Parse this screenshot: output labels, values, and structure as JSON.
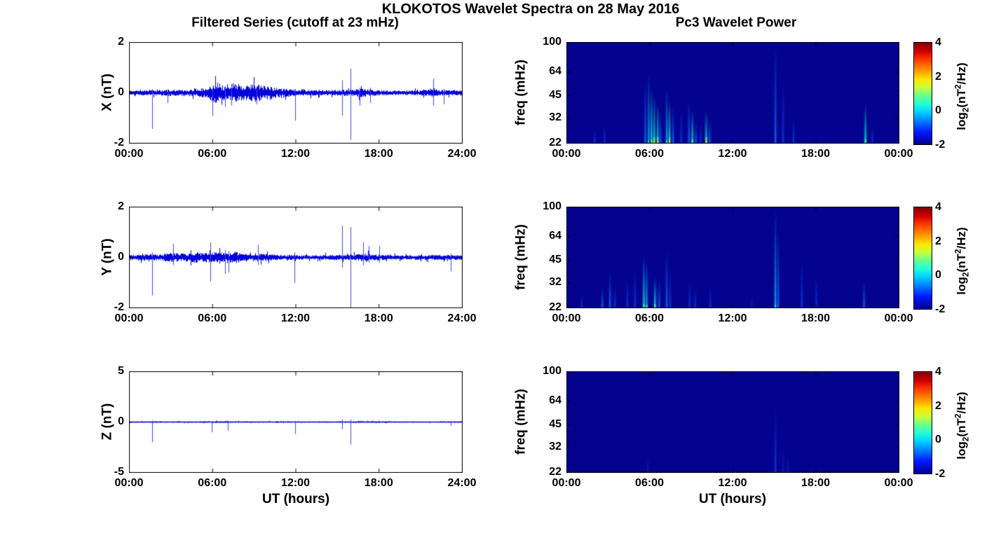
{
  "title": "KLOKOTOS Wavelet Spectra on 28 May 2016",
  "left_title": "Filtered Series (cutoff at 23 mHz)",
  "right_title": "Pc3 Wavelet Power",
  "xlabel": "UT (hours)",
  "colorbar": {
    "label_parts": [
      "log",
      "2",
      "(nT",
      "2",
      "/Hz)"
    ],
    "ticks": [
      {
        "f": 0,
        "label": "4"
      },
      {
        "f": 0.3333,
        "label": "2"
      },
      {
        "f": 0.6667,
        "label": "0"
      },
      {
        "f": 1,
        "label": "-2"
      }
    ],
    "clim": [
      -2,
      4
    ],
    "gradient": [
      [
        "#7f0000",
        0
      ],
      [
        "#d40000",
        9
      ],
      [
        "#ff3b00",
        17
      ],
      [
        "#ff9400",
        27
      ],
      [
        "#ffe500",
        36
      ],
      [
        "#c8ff37",
        44
      ],
      [
        "#6aff8d",
        52
      ],
      [
        "#22ffd4",
        60
      ],
      [
        "#00d4ff",
        68
      ],
      [
        "#0080ff",
        77
      ],
      [
        "#0018ff",
        88
      ],
      [
        "#00008f",
        100
      ]
    ]
  },
  "colors": {
    "line": "#0000dd",
    "spike": "#4646f0",
    "spec_bg": "#03038f",
    "axis": "#000000",
    "accent_yellow": "#ffd800",
    "accent_green": "#55f07a",
    "accent_cyan": "#28d8e8"
  },
  "chart_data": [
    {
      "type": "line",
      "component": "X",
      "ylabel": "X (nT)",
      "ylim": [
        -2,
        2
      ],
      "xlim_hours": [
        0,
        24
      ],
      "yticks": [
        {
          "f": 0,
          "label": "2"
        },
        {
          "f": 0.5,
          "label": "0"
        },
        {
          "f": 1,
          "label": "-2"
        }
      ],
      "xticks": [
        {
          "f": 0,
          "label": "00:00"
        },
        {
          "f": 0.25,
          "label": "06:00"
        },
        {
          "f": 0.5,
          "label": "12:00"
        },
        {
          "f": 0.75,
          "label": "18:00"
        },
        {
          "f": 1,
          "label": "24:00"
        }
      ],
      "seed": 11,
      "noise_envelope": [
        [
          0,
          0.07
        ],
        [
          1,
          0.08
        ],
        [
          2,
          0.09
        ],
        [
          3,
          0.1
        ],
        [
          4,
          0.1
        ],
        [
          5,
          0.12
        ],
        [
          5.6,
          0.18
        ],
        [
          6,
          0.28
        ],
        [
          6.4,
          0.33
        ],
        [
          6.7,
          0.26
        ],
        [
          7.1,
          0.2
        ],
        [
          7.5,
          0.33
        ],
        [
          7.9,
          0.3
        ],
        [
          8.3,
          0.22
        ],
        [
          8.8,
          0.26
        ],
        [
          9.2,
          0.28
        ],
        [
          9.6,
          0.2
        ],
        [
          10,
          0.24
        ],
        [
          10.5,
          0.16
        ],
        [
          11,
          0.13
        ],
        [
          11.5,
          0.12
        ],
        [
          12,
          0.1
        ],
        [
          13,
          0.09
        ],
        [
          14,
          0.08
        ],
        [
          15,
          0.09
        ],
        [
          15.5,
          0.1
        ],
        [
          16,
          0.1
        ],
        [
          16.7,
          0.13
        ],
        [
          17.2,
          0.11
        ],
        [
          18,
          0.08
        ],
        [
          19,
          0.07
        ],
        [
          20,
          0.07
        ],
        [
          21,
          0.08
        ],
        [
          21.7,
          0.13
        ],
        [
          22,
          0.16
        ],
        [
          22.3,
          0.1
        ],
        [
          23,
          0.08
        ],
        [
          24,
          0.08
        ]
      ],
      "spikes": [
        [
          1.67,
          1.42,
          0.15
        ],
        [
          2.8,
          0.4,
          0.1
        ],
        [
          6.0,
          0.92,
          0.2
        ],
        [
          6.9,
          0.55,
          0.25
        ],
        [
          7.4,
          0.5,
          0.3
        ],
        [
          9.2,
          0.45,
          0.25
        ],
        [
          11.95,
          1.1,
          0.15
        ],
        [
          15.35,
          0.9,
          0.5
        ],
        [
          15.98,
          1.85,
          0.95
        ],
        [
          16.6,
          0.5,
          0.2
        ],
        [
          17.4,
          0.4,
          0.2
        ],
        [
          21.95,
          0.5,
          0.55
        ],
        [
          22.7,
          0.45,
          0.15
        ]
      ]
    },
    {
      "type": "line",
      "component": "Y",
      "ylabel": "Y (nT)",
      "ylim": [
        -2,
        2
      ],
      "xlim_hours": [
        0,
        24
      ],
      "yticks": [
        {
          "f": 0,
          "label": "2"
        },
        {
          "f": 0.5,
          "label": "0"
        },
        {
          "f": 1,
          "label": "-2"
        }
      ],
      "xticks": [
        {
          "f": 0,
          "label": "00:00"
        },
        {
          "f": 0.25,
          "label": "06:00"
        },
        {
          "f": 0.5,
          "label": "12:00"
        },
        {
          "f": 0.75,
          "label": "18:00"
        },
        {
          "f": 1,
          "label": "24:00"
        }
      ],
      "seed": 22,
      "noise_envelope": [
        [
          0,
          0.09
        ],
        [
          0.7,
          0.11
        ],
        [
          1.5,
          0.1
        ],
        [
          2.2,
          0.11
        ],
        [
          2.8,
          0.13
        ],
        [
          3.2,
          0.16
        ],
        [
          3.6,
          0.12
        ],
        [
          4.2,
          0.13
        ],
        [
          4.8,
          0.16
        ],
        [
          5.3,
          0.14
        ],
        [
          5.7,
          0.17
        ],
        [
          6.1,
          0.14
        ],
        [
          6.5,
          0.17
        ],
        [
          6.9,
          0.14
        ],
        [
          7.3,
          0.16
        ],
        [
          7.7,
          0.18
        ],
        [
          8.1,
          0.12
        ],
        [
          8.7,
          0.1
        ],
        [
          9.3,
          0.13
        ],
        [
          9.8,
          0.11
        ],
        [
          10.5,
          0.09
        ],
        [
          11.5,
          0.08
        ],
        [
          12.5,
          0.07
        ],
        [
          13.5,
          0.07
        ],
        [
          14.5,
          0.08
        ],
        [
          15.5,
          0.08
        ],
        [
          16.5,
          0.1
        ],
        [
          17,
          0.12
        ],
        [
          17.5,
          0.1
        ],
        [
          18,
          0.09
        ],
        [
          19,
          0.07
        ],
        [
          20,
          0.06
        ],
        [
          21,
          0.07
        ],
        [
          22,
          0.08
        ],
        [
          23,
          0.07
        ],
        [
          24,
          0.08
        ]
      ],
      "spikes": [
        [
          1.67,
          1.5,
          0.2
        ],
        [
          3.2,
          0.3,
          0.55
        ],
        [
          5.85,
          0.95,
          0.6
        ],
        [
          6.9,
          0.65,
          0.3
        ],
        [
          7.15,
          0.6,
          0.25
        ],
        [
          9.3,
          0.3,
          0.5
        ],
        [
          11.9,
          1.0,
          0.2
        ],
        [
          15.35,
          0.4,
          1.25
        ],
        [
          15.98,
          2.0,
          1.2
        ],
        [
          16.9,
          0.3,
          0.6
        ],
        [
          17.3,
          0.2,
          0.45
        ],
        [
          18.05,
          0.2,
          0.45
        ],
        [
          23.2,
          0.55,
          0.15
        ]
      ]
    },
    {
      "type": "line",
      "component": "Z",
      "ylabel": "Z (nT)",
      "ylim": [
        -5,
        5
      ],
      "xlim_hours": [
        0,
        24
      ],
      "yticks": [
        {
          "f": 0,
          "label": "5"
        },
        {
          "f": 0.5,
          "label": "0"
        },
        {
          "f": 1,
          "label": "-5"
        }
      ],
      "xticks": [
        {
          "f": 0,
          "label": "00:00"
        },
        {
          "f": 0.25,
          "label": "06:00"
        },
        {
          "f": 0.5,
          "label": "12:00"
        },
        {
          "f": 0.75,
          "label": "18:00"
        },
        {
          "f": 1,
          "label": "24:00"
        }
      ],
      "seed": 33,
      "noise_envelope": [
        [
          0,
          0.045
        ],
        [
          5,
          0.045
        ],
        [
          6,
          0.06
        ],
        [
          7,
          0.06
        ],
        [
          8,
          0.05
        ],
        [
          12,
          0.04
        ],
        [
          15,
          0.045
        ],
        [
          16,
          0.06
        ],
        [
          17.5,
          0.055
        ],
        [
          20,
          0.04
        ],
        [
          24,
          0.045
        ]
      ],
      "spikes": [
        [
          1.67,
          2.0,
          0.15
        ],
        [
          5.95,
          1.0,
          0.1
        ],
        [
          7.1,
          0.85,
          0.12
        ],
        [
          11.95,
          1.2,
          0.1
        ],
        [
          15.35,
          0.7,
          0.3
        ],
        [
          15.98,
          2.2,
          0.25
        ],
        [
          23.2,
          0.4,
          0.1
        ]
      ]
    },
    {
      "type": "heatmap",
      "component": "X",
      "ylabel": "freq (mHz)",
      "freq_lim_mhz": [
        22,
        100
      ],
      "log_freq_axis": true,
      "xlim_hours": [
        0,
        24
      ],
      "clim": [
        -2,
        4
      ],
      "yticks": [
        {
          "f": 0,
          "label": "100"
        },
        {
          "f": 0.295,
          "label": "64"
        },
        {
          "f": 0.527,
          "label": "45"
        },
        {
          "f": 0.752,
          "label": "32"
        },
        {
          "f": 1,
          "label": "22"
        }
      ],
      "xticks": [
        {
          "f": 0,
          "label": "00:00"
        },
        {
          "f": 0.25,
          "label": "06:00"
        },
        {
          "f": 0.5,
          "label": "12:00"
        },
        {
          "f": 0.75,
          "label": "18:00"
        },
        {
          "f": 1,
          "label": "00:00"
        }
      ],
      "events": [
        [
          2.05,
          27,
          0.25
        ],
        [
          2.75,
          29,
          0.3
        ],
        [
          5.7,
          55,
          0.45
        ],
        [
          5.95,
          62,
          0.75
        ],
        [
          6.15,
          50,
          0.85
        ],
        [
          6.35,
          45,
          0.95
        ],
        [
          6.6,
          40,
          0.9
        ],
        [
          6.8,
          34,
          0.55
        ],
        [
          7.25,
          50,
          0.7
        ],
        [
          7.45,
          42,
          0.9
        ],
        [
          7.7,
          38,
          0.45
        ],
        [
          8.3,
          36,
          0.4
        ],
        [
          8.85,
          42,
          0.5
        ],
        [
          9.1,
          36,
          0.85
        ],
        [
          9.35,
          30,
          0.45
        ],
        [
          9.7,
          30,
          0.35
        ],
        [
          10.1,
          36,
          0.9
        ],
        [
          10.35,
          32,
          0.55
        ],
        [
          15.1,
          95,
          0.6
        ],
        [
          15.65,
          58,
          0.4
        ],
        [
          16.4,
          33,
          0.3
        ],
        [
          21.6,
          40,
          0.85
        ],
        [
          22.1,
          29,
          0.3
        ]
      ]
    },
    {
      "type": "heatmap",
      "component": "Y",
      "ylabel": "freq (mHz)",
      "freq_lim_mhz": [
        22,
        100
      ],
      "log_freq_axis": true,
      "xlim_hours": [
        0,
        24
      ],
      "clim": [
        -2,
        4
      ],
      "yticks": [
        {
          "f": 0,
          "label": "100"
        },
        {
          "f": 0.295,
          "label": "64"
        },
        {
          "f": 0.527,
          "label": "45"
        },
        {
          "f": 0.752,
          "label": "32"
        },
        {
          "f": 1,
          "label": "22"
        }
      ],
      "xticks": [
        {
          "f": 0,
          "label": "00:00"
        },
        {
          "f": 0.25,
          "label": "06:00"
        },
        {
          "f": 0.5,
          "label": "12:00"
        },
        {
          "f": 0.75,
          "label": "18:00"
        },
        {
          "f": 1,
          "label": "00:00"
        }
      ],
      "events": [
        [
          1.1,
          27,
          0.35
        ],
        [
          2.6,
          30,
          0.45
        ],
        [
          3.15,
          38,
          0.5
        ],
        [
          3.5,
          30,
          0.3
        ],
        [
          4.4,
          33,
          0.3
        ],
        [
          4.95,
          40,
          0.35
        ],
        [
          5.6,
          48,
          0.85
        ],
        [
          5.8,
          44,
          0.7
        ],
        [
          6.4,
          35,
          0.8
        ],
        [
          6.7,
          33,
          0.55
        ],
        [
          7.25,
          52,
          0.5
        ],
        [
          7.5,
          40,
          0.35
        ],
        [
          8.9,
          33,
          0.4
        ],
        [
          9.3,
          30,
          0.3
        ],
        [
          10.4,
          30,
          0.3
        ],
        [
          13.4,
          28,
          0.2
        ],
        [
          15.1,
          95,
          0.65
        ],
        [
          15.3,
          70,
          0.45
        ],
        [
          17.0,
          45,
          0.3
        ],
        [
          18.05,
          35,
          0.25
        ],
        [
          21.5,
          33,
          0.55
        ]
      ]
    },
    {
      "type": "heatmap",
      "component": "Z",
      "ylabel": "freq (mHz)",
      "freq_lim_mhz": [
        22,
        100
      ],
      "log_freq_axis": true,
      "xlim_hours": [
        0,
        24
      ],
      "clim": [
        -2,
        4
      ],
      "yticks": [
        {
          "f": 0,
          "label": "100"
        },
        {
          "f": 0.295,
          "label": "64"
        },
        {
          "f": 0.527,
          "label": "45"
        },
        {
          "f": 0.752,
          "label": "32"
        },
        {
          "f": 1,
          "label": "22"
        }
      ],
      "xticks": [
        {
          "f": 0,
          "label": "00:00"
        },
        {
          "f": 0.25,
          "label": "06:00"
        },
        {
          "f": 0.5,
          "label": "12:00"
        },
        {
          "f": 0.75,
          "label": "18:00"
        },
        {
          "f": 1,
          "label": "00:00"
        }
      ],
      "events": [
        [
          5.9,
          28,
          0.12
        ],
        [
          15.1,
          58,
          0.25
        ],
        [
          15.65,
          34,
          0.18
        ],
        [
          16.0,
          30,
          0.1
        ]
      ]
    }
  ]
}
